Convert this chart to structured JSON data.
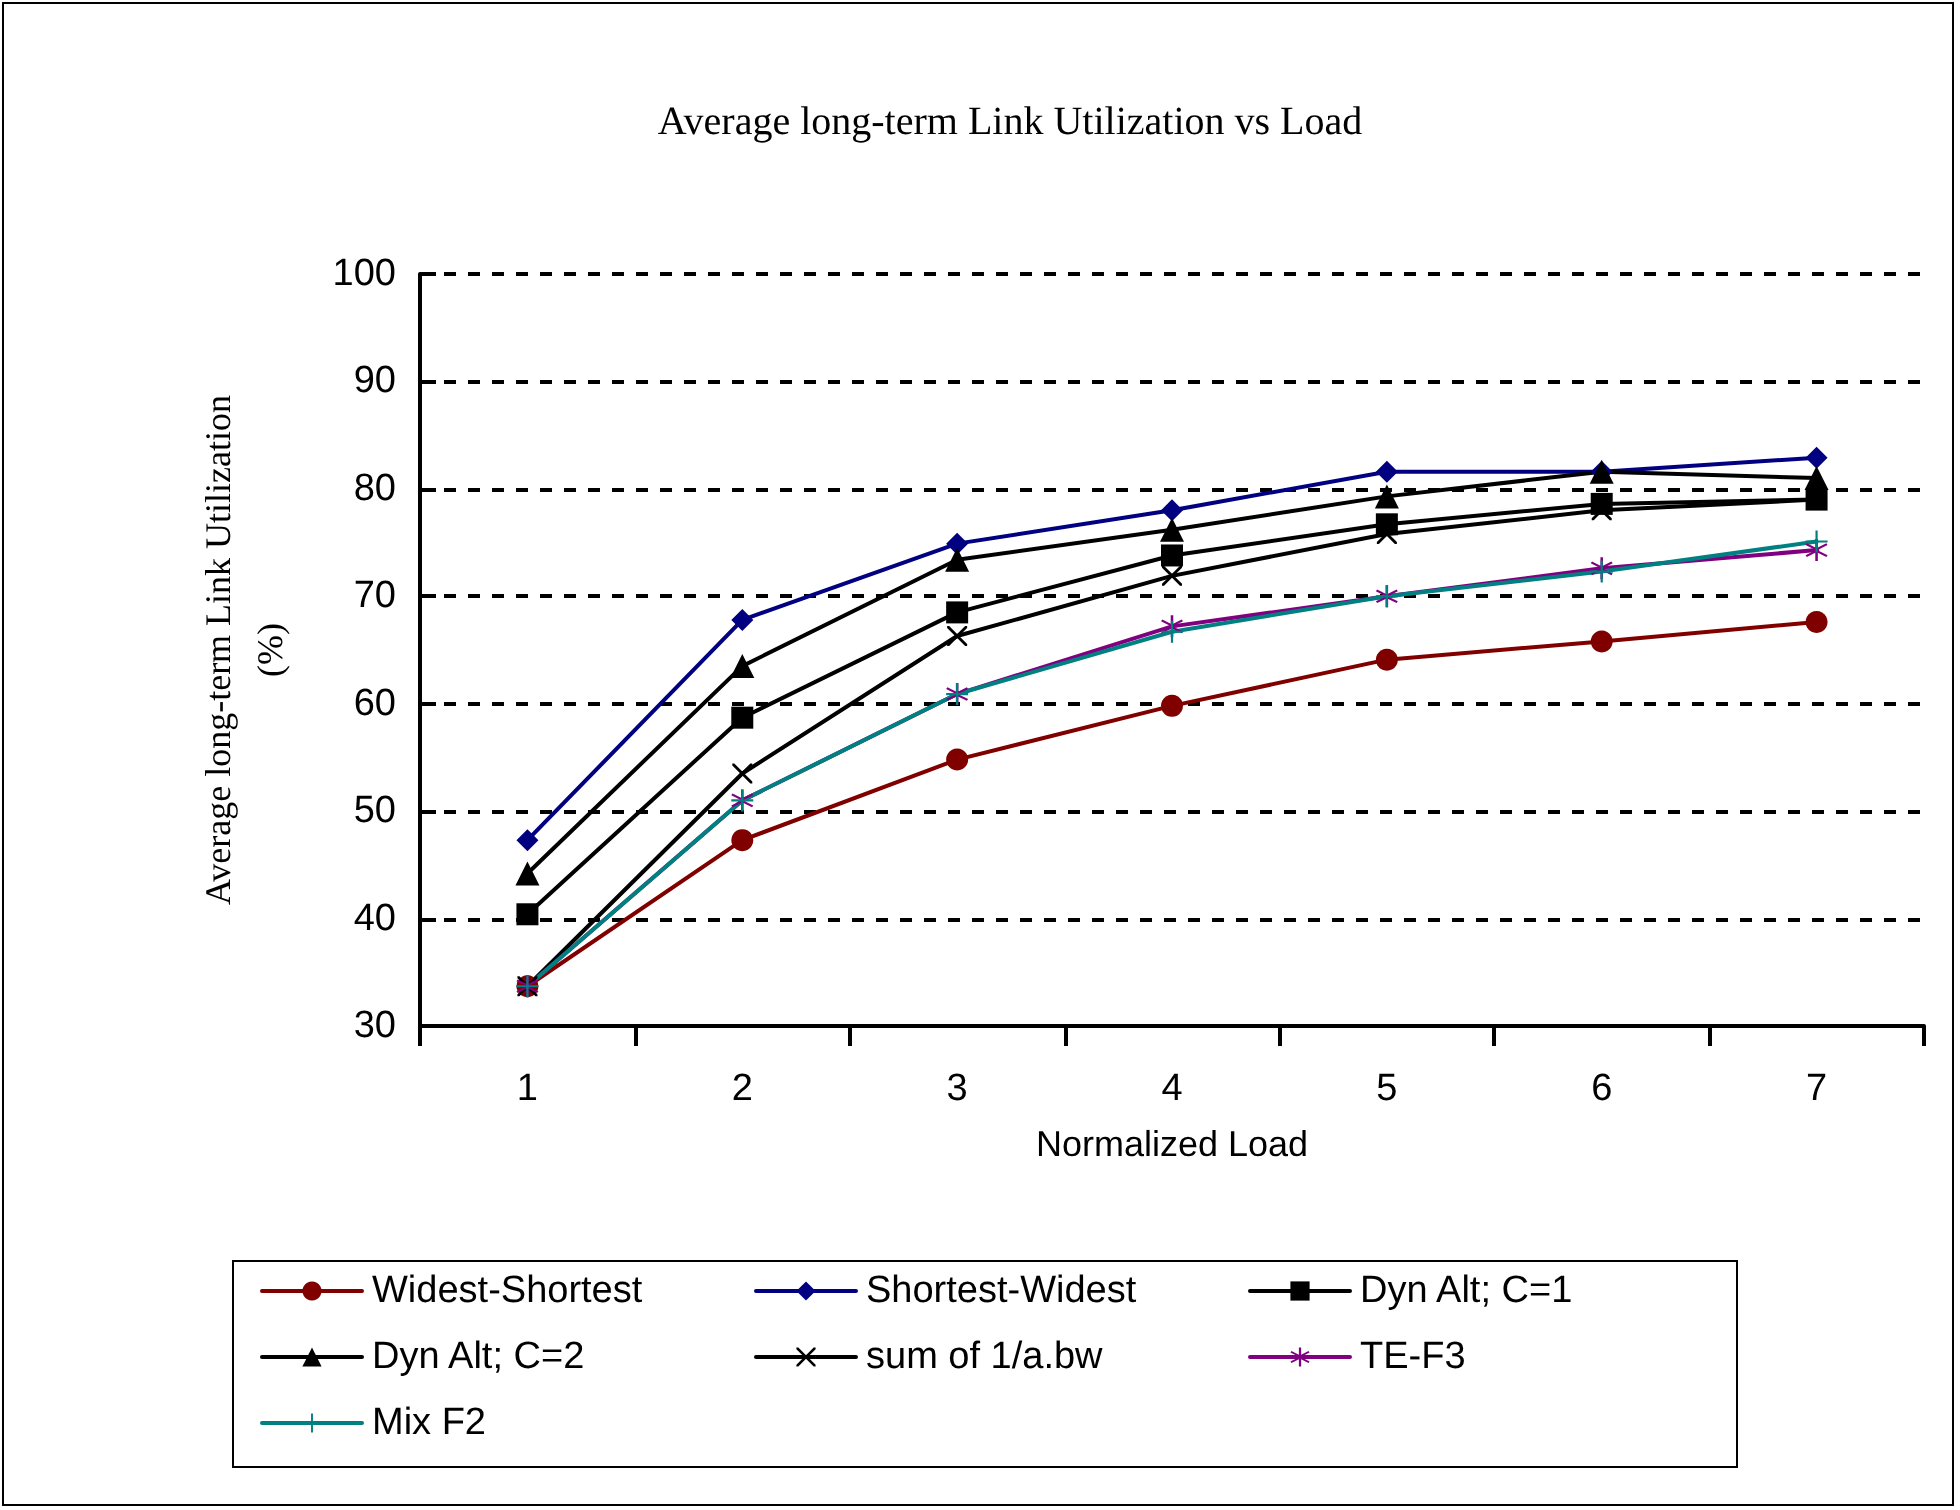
{
  "chart_data": {
    "type": "line",
    "title": "Average long-term Link Utilization vs Load",
    "xlabel": "Normalized Load",
    "ylabel": "Average long-term Link Utilization\n(%)",
    "categories": [
      "1",
      "2",
      "3",
      "4",
      "5",
      "6",
      "7"
    ],
    "ylim": [
      30,
      100
    ],
    "yticks": [
      30,
      40,
      50,
      60,
      70,
      80,
      90,
      100
    ],
    "grid": "y",
    "legend": "bottom",
    "series": [
      {
        "name": "Widest-Shortest",
        "color": "#800000",
        "marker": "circle",
        "values": [
          33.7,
          47.3,
          54.8,
          59.8,
          64.1,
          65.8,
          67.6
        ]
      },
      {
        "name": "Shortest-Widest",
        "color": "#000080",
        "marker": "diamond",
        "values": [
          47.3,
          67.8,
          74.9,
          78.0,
          81.6,
          81.6,
          82.9
        ]
      },
      {
        "name": "Dyn Alt; C=1",
        "color": "#000000",
        "marker": "square",
        "values": [
          40.4,
          58.7,
          68.5,
          73.8,
          76.7,
          78.6,
          79.0
        ]
      },
      {
        "name": "Dyn Alt; C=2",
        "color": "#000000",
        "marker": "triangle",
        "values": [
          44.2,
          63.5,
          73.4,
          76.2,
          79.3,
          81.6,
          81.0
        ]
      },
      {
        "name": "sum of 1/a.bw",
        "color": "#000000",
        "marker": "cross",
        "values": [
          33.7,
          53.5,
          66.3,
          71.9,
          75.8,
          78.0,
          79.0
        ]
      },
      {
        "name": "TE-F3",
        "color": "#800080",
        "marker": "star",
        "values": [
          33.7,
          51.0,
          60.9,
          67.2,
          70.0,
          72.6,
          74.3
        ]
      },
      {
        "name": "Mix F2",
        "color": "#008080",
        "marker": "plus",
        "values": [
          33.7,
          51.0,
          60.9,
          66.7,
          70.0,
          72.3,
          75.1
        ]
      }
    ]
  }
}
